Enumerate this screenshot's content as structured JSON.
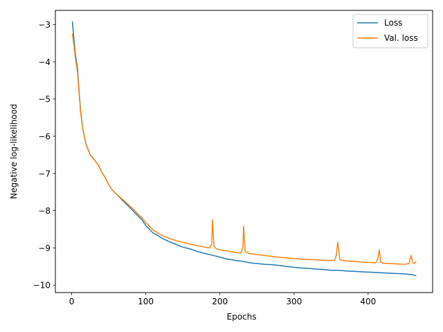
{
  "chart_data": {
    "type": "line",
    "title": "",
    "xlabel": "Epochs",
    "ylabel": "Negative log-likelihood",
    "xlim": [
      -22,
      487
    ],
    "ylim": [
      -10.2,
      -2.62
    ],
    "xticks": [
      0,
      100,
      200,
      300,
      400
    ],
    "yticks": [
      -3,
      -4,
      -5,
      -6,
      -7,
      -8,
      -9,
      -10
    ],
    "xtick_labels": [
      "0",
      "100",
      "200",
      "300",
      "400"
    ],
    "ytick_labels": [
      "−3",
      "−4",
      "−5",
      "−6",
      "−7",
      "−8",
      "−9",
      "−10"
    ],
    "grid": false,
    "legend_position": "top-right",
    "series": [
      {
        "name": "Loss",
        "color": "#1f77b4",
        "x": [
          1,
          3,
          5,
          8,
          10,
          12,
          15,
          18,
          20,
          23,
          25,
          30,
          35,
          38,
          40,
          45,
          50,
          55,
          60,
          70,
          80,
          90,
          95,
          100,
          105,
          110,
          115,
          120,
          130,
          140,
          150,
          160,
          170,
          180,
          190,
          195,
          200,
          210,
          220,
          230,
          240,
          250,
          260,
          270,
          280,
          290,
          300,
          310,
          320,
          330,
          340,
          350,
          360,
          370,
          380,
          390,
          400,
          410,
          420,
          430,
          440,
          450,
          460,
          465
        ],
        "y": [
          -2.92,
          -3.4,
          -3.8,
          -4.2,
          -4.8,
          -5.3,
          -5.8,
          -6.1,
          -6.25,
          -6.4,
          -6.5,
          -6.62,
          -6.75,
          -6.85,
          -6.95,
          -7.1,
          -7.3,
          -7.45,
          -7.55,
          -7.75,
          -7.95,
          -8.15,
          -8.25,
          -8.4,
          -8.5,
          -8.6,
          -8.65,
          -8.72,
          -8.82,
          -8.9,
          -8.98,
          -9.03,
          -9.1,
          -9.15,
          -9.2,
          -9.22,
          -9.25,
          -9.3,
          -9.33,
          -9.36,
          -9.4,
          -9.42,
          -9.44,
          -9.45,
          -9.47,
          -9.5,
          -9.52,
          -9.54,
          -9.55,
          -9.57,
          -9.58,
          -9.6,
          -9.6,
          -9.62,
          -9.63,
          -9.64,
          -9.65,
          -9.66,
          -9.67,
          -9.68,
          -9.69,
          -9.7,
          -9.72,
          -9.75
        ]
      },
      {
        "name": "Val. loss",
        "color": "#ff7f0e",
        "x": [
          1,
          3,
          5,
          8,
          10,
          12,
          15,
          18,
          20,
          23,
          25,
          30,
          35,
          38,
          40,
          45,
          50,
          55,
          60,
          70,
          80,
          90,
          95,
          100,
          105,
          110,
          115,
          120,
          130,
          140,
          150,
          160,
          170,
          180,
          186,
          189,
          190,
          192,
          195,
          200,
          210,
          220,
          228,
          231,
          232,
          234,
          240,
          250,
          260,
          270,
          280,
          290,
          300,
          310,
          320,
          330,
          340,
          350,
          355,
          357,
          359,
          362,
          370,
          380,
          390,
          400,
          410,
          413,
          415,
          417,
          420,
          430,
          440,
          450,
          455,
          458,
          460,
          462,
          465
        ],
        "y": [
          -3.25,
          -3.55,
          -3.9,
          -4.3,
          -4.85,
          -5.35,
          -5.8,
          -6.1,
          -6.25,
          -6.4,
          -6.5,
          -6.62,
          -6.75,
          -6.85,
          -6.95,
          -7.1,
          -7.3,
          -7.45,
          -7.55,
          -7.72,
          -7.9,
          -8.1,
          -8.2,
          -8.32,
          -8.42,
          -8.52,
          -8.58,
          -8.65,
          -8.73,
          -8.8,
          -8.85,
          -8.9,
          -8.94,
          -8.98,
          -9.0,
          -8.9,
          -8.25,
          -8.95,
          -9.02,
          -9.05,
          -9.08,
          -9.12,
          -9.14,
          -9.0,
          -8.42,
          -9.1,
          -9.15,
          -9.18,
          -9.2,
          -9.23,
          -9.25,
          -9.27,
          -9.29,
          -9.3,
          -9.31,
          -9.32,
          -9.33,
          -9.34,
          -9.33,
          -9.2,
          -8.85,
          -9.32,
          -9.35,
          -9.36,
          -9.38,
          -9.39,
          -9.4,
          -9.3,
          -9.05,
          -9.38,
          -9.41,
          -9.42,
          -9.43,
          -9.44,
          -9.42,
          -9.2,
          -9.38,
          -9.42,
          -9.37
        ]
      }
    ]
  }
}
